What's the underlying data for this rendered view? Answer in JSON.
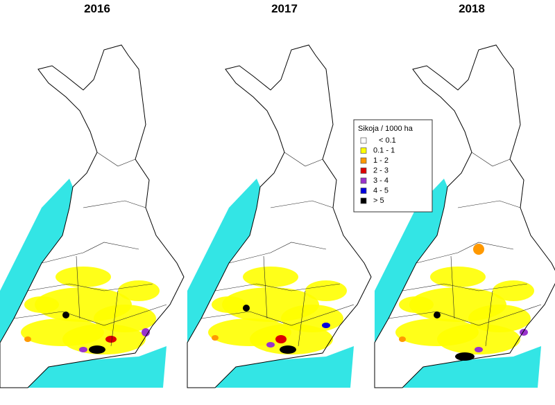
{
  "maps": [
    {
      "title": "2016"
    },
    {
      "title": "2017"
    },
    {
      "title": "2018"
    }
  ],
  "legend": {
    "title": "Sikoja / 1000 ha",
    "items": [
      {
        "label": "< 0.1",
        "color": "#ffffff"
      },
      {
        "label": "0.1 - 1",
        "color": "#ffff00"
      },
      {
        "label": "1 - 2",
        "color": "#ff9900"
      },
      {
        "label": "2 - 3",
        "color": "#dd0000"
      },
      {
        "label": "3 - 4",
        "color": "#9933cc"
      },
      {
        "label": "4 - 5",
        "color": "#0000dd"
      },
      {
        "label": "> 5",
        "color": "#000000"
      }
    ]
  }
}
